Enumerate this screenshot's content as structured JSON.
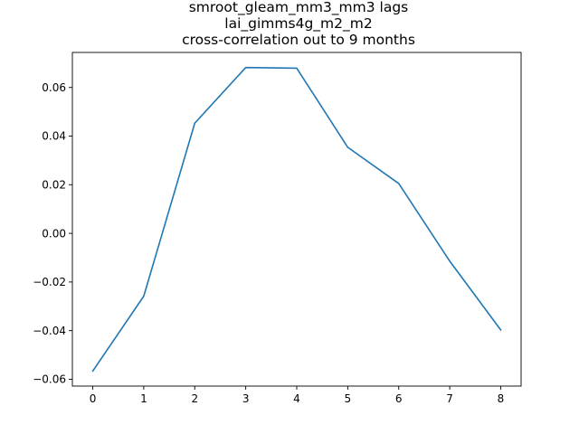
{
  "chart_data": {
    "type": "line",
    "title_lines": [
      "smroot_gleam_mm3_mm3 lags",
      "lai_gimms4g_m2_m2",
      "cross-correlation out to 9 months"
    ],
    "xlabel": "",
    "ylabel": "",
    "x": [
      0,
      1,
      2,
      3,
      4,
      5,
      6,
      7,
      8
    ],
    "series": [
      {
        "values": [
          -0.0566,
          -0.0258,
          0.0453,
          0.0682,
          0.0679,
          0.0354,
          0.0205,
          -0.0114,
          -0.0397
        ],
        "color": "#1f77b4"
      }
    ],
    "xticks": [
      0,
      1,
      2,
      3,
      4,
      5,
      6,
      7,
      8
    ],
    "xtick_labels": [
      "0",
      "1",
      "2",
      "3",
      "4",
      "5",
      "6",
      "7",
      "8"
    ],
    "yticks": [
      -0.06,
      -0.04,
      -0.02,
      0.0,
      0.02,
      0.04,
      0.06
    ],
    "ytick_labels": [
      "−0.06",
      "−0.04",
      "−0.02",
      "0.00",
      "0.02",
      "0.04",
      "0.06"
    ],
    "xlim": [
      -0.4,
      8.4
    ],
    "ylim": [
      -0.0628,
      0.0744
    ],
    "grid": false,
    "legend": "none"
  }
}
